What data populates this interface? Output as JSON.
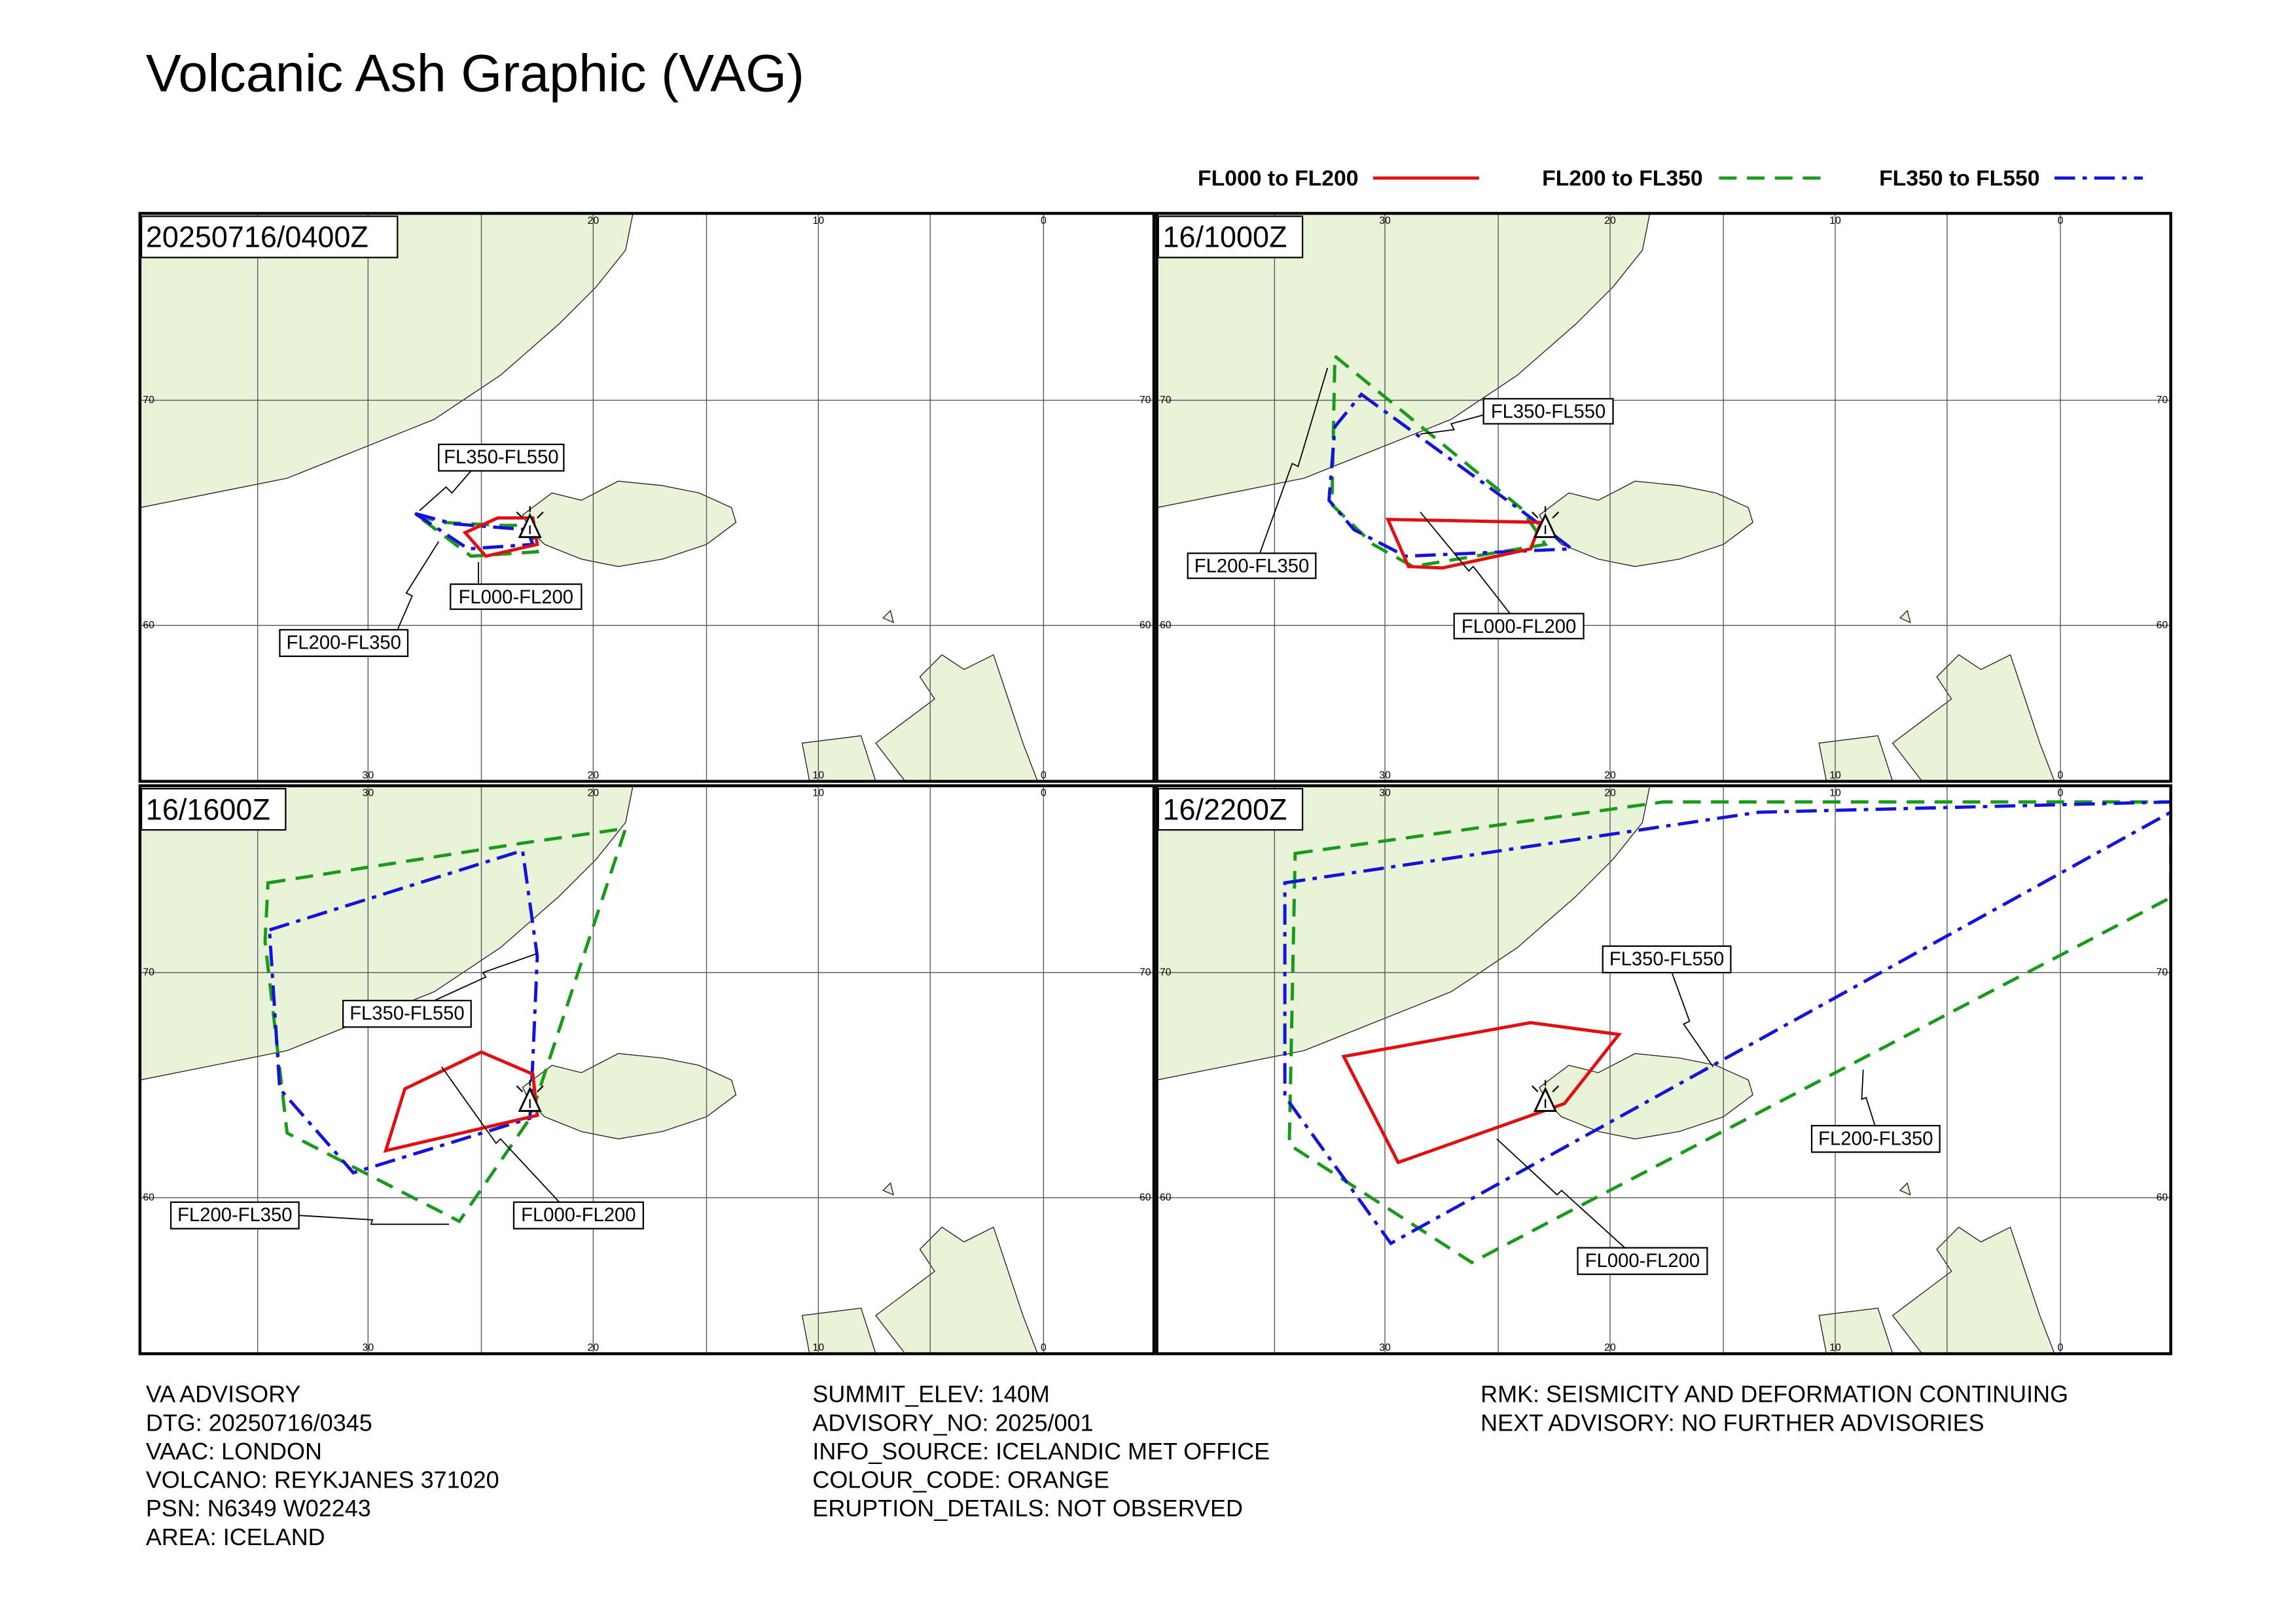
{
  "header": {
    "title": "Volcanic Ash Graphic (VAG)"
  },
  "legend": [
    {
      "label": "FL000 to FL200"
    },
    {
      "label": "FL200 to FL350"
    },
    {
      "label": "FL350 to FL550"
    }
  ],
  "grid_labels": {
    "lon": [
      "30",
      "20",
      "10",
      "0"
    ],
    "lat": [
      "70",
      "60"
    ]
  },
  "panels": [
    {
      "time": "20250716/0400Z",
      "labels": [
        "FL350-FL550",
        "FL000-FL200",
        "FL200-FL350"
      ]
    },
    {
      "time": "16/1000Z",
      "labels": [
        "FL350-FL550",
        "FL200-FL350",
        "FL000-FL200"
      ]
    },
    {
      "time": "16/1600Z",
      "labels": [
        "FL350-FL550",
        "FL200-FL350",
        "FL000-FL200"
      ]
    },
    {
      "time": "16/2200Z",
      "labels": [
        "FL350-FL550",
        "FL200-FL350",
        "FL000-FL200"
      ]
    }
  ],
  "footer": {
    "columns": [
      [
        "VA ADVISORY",
        "DTG: 20250716/0345",
        "VAAC: LONDON",
        "VOLCANO: REYKJANES 371020",
        "PSN: N6349 W02243",
        "AREA: ICELAND"
      ],
      [
        "SUMMIT_ELEV: 140M",
        "ADVISORY_NO: 2025/001",
        "INFO_SOURCE: ICELANDIC MET OFFICE",
        "COLOUR_CODE: ORANGE",
        "ERUPTION_DETAILS: NOT OBSERVED"
      ],
      [
        "RMK: SEISMICITY AND DEFORMATION CONTINUING",
        "NEXT ADVISORY: NO FURTHER ADVISORIES"
      ]
    ]
  }
}
